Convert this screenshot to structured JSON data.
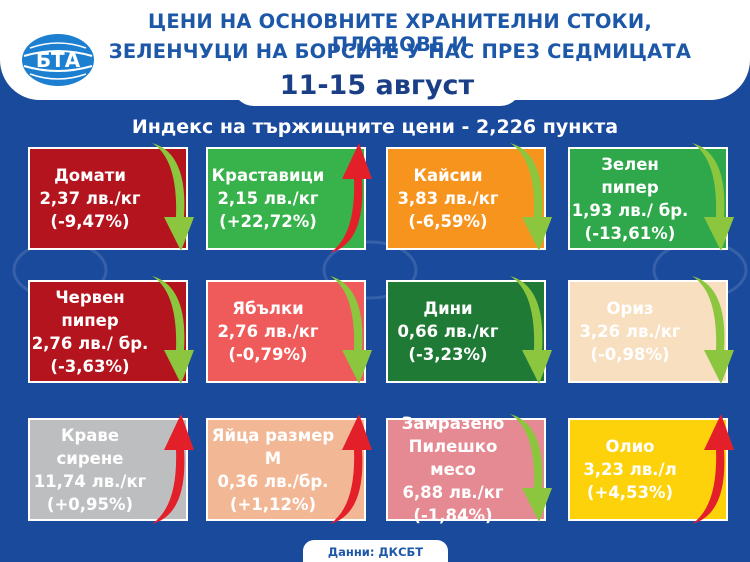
{
  "header": {
    "title_line1": "ЦЕНИ НА ОСНОВНИТЕ ХРАНИТЕЛНИ СТОКИ, ПЛОДОВЕ И",
    "title_line2": "ЗЕЛЕНЧУЦИ НА БОРСИТЕ У НАС ПРЕЗ СЕДМИЦАТА",
    "date": "11-15 август",
    "logo_text": "БТА"
  },
  "subtitle": "Индекс на тържищните цени - 2,226 пункта",
  "colors": {
    "background": "#1a4a9c",
    "title": "#1d57a8",
    "arrow_down": "#8cc63f",
    "arrow_up": "#e3202a"
  },
  "cards": [
    {
      "name": "Домати",
      "price": "2,37 лв./кг",
      "change": "(-9,47%)",
      "direction": "down",
      "color": "#b3141d"
    },
    {
      "name": "Краставици",
      "price": "2,15 лв./кг",
      "change": "(+22,72%)",
      "direction": "up",
      "color": "#38b24a"
    },
    {
      "name": "Кайсии",
      "price": "3,83 лв./кг",
      "change": "(-6,59%)",
      "direction": "down",
      "color": "#f7941d"
    },
    {
      "name": "Зелен пипер",
      "price": "1,93 лв./ бр.",
      "change": "(-13,61%)",
      "direction": "down",
      "color": "#2ea84a"
    },
    {
      "name": "Червен пипер",
      "price": "2,76 лв./ бр.",
      "change": "(-3,63%)",
      "direction": "down",
      "color": "#b3141d"
    },
    {
      "name": "Ябълки",
      "price": "2,76 лв./кг",
      "change": "(-0,79%)",
      "direction": "down",
      "color": "#ef5a5a"
    },
    {
      "name": "Дини",
      "price": "0,66 лв./кг",
      "change": "(-3,23%)",
      "direction": "down",
      "color": "#1f7a36"
    },
    {
      "name": "Ориз",
      "price": "3,26 лв./кг",
      "change": "(-0,98%)",
      "direction": "down",
      "color": "#f7dfc0"
    },
    {
      "name": "Краве сирене",
      "price": "11,74 лв./кг",
      "change": "(+0,95%)",
      "direction": "up",
      "color": "#bcbec0"
    },
    {
      "name": "Яйца размер М",
      "price": "0,36 лв./бр.",
      "change": "(+1,12%)",
      "direction": "up",
      "color": "#f2b896"
    },
    {
      "name": "Замразено Пилешко месо",
      "price": "6,88 лв./кг",
      "change": "(-1,84%)",
      "direction": "down",
      "color": "#e58a92"
    },
    {
      "name": "Олио",
      "price": "3,23 лв./л",
      "change": "(+4,53%)",
      "direction": "up",
      "color": "#fdd20a"
    }
  ],
  "footer": "Данни: ДКСБТ"
}
